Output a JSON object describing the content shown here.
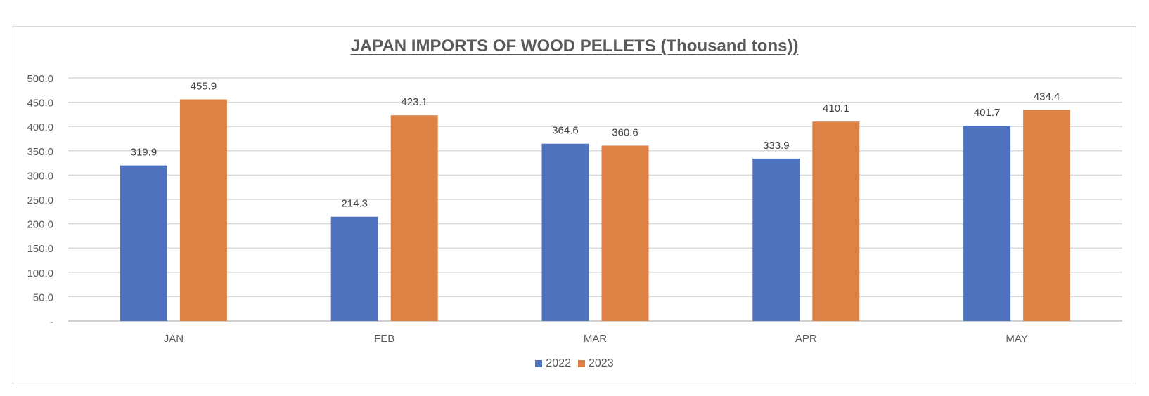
{
  "chart_data": {
    "type": "bar",
    "title": "JAPAN IMPORTS OF WOOD PELLETS (Thousand tons))",
    "xlabel": "",
    "ylabel": "",
    "categories": [
      "JAN",
      "FEB",
      "MAR",
      "APR",
      "MAY"
    ],
    "series": [
      {
        "name": "2022",
        "color": "#4f72be",
        "values": [
          319.9,
          214.3,
          364.6,
          333.9,
          401.7
        ],
        "labels": [
          "319.9",
          "214.3",
          "364.6",
          "333.9",
          "401.7"
        ]
      },
      {
        "name": "2023",
        "color": "#dd8244",
        "values": [
          455.9,
          423.1,
          360.6,
          410.1,
          434.4
        ],
        "labels": [
          "455.9",
          "423.1",
          "360.6",
          "410.1",
          "434.4"
        ]
      }
    ],
    "ylim": [
      0,
      500
    ],
    "yticks": [
      0,
      50,
      100,
      150,
      200,
      250,
      300,
      350,
      400,
      450,
      500
    ],
    "ytick_labels": [
      "-",
      "50.0",
      "100.0",
      "150.0",
      "200.0",
      "250.0",
      "300.0",
      "350.0",
      "400.0",
      "450.0",
      "500.0"
    ],
    "grid": true,
    "legend_position": "bottom"
  }
}
